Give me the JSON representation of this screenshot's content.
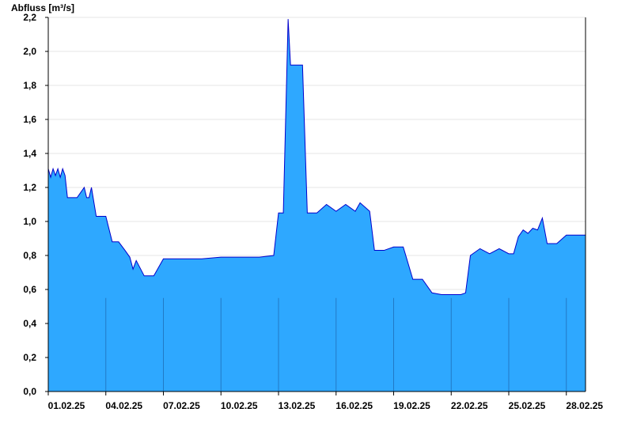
{
  "chart_data": {
    "type": "area",
    "ylabel": "Abfluss [m³/s]",
    "ylim": [
      0,
      2.2
    ],
    "xlim": [
      "2025-02-01",
      "2025-02-28"
    ],
    "y_ticks": [
      "0,0",
      "0,2",
      "0,4",
      "0,6",
      "0,8",
      "1,0",
      "1,2",
      "1,4",
      "1,6",
      "1,8",
      "2,0",
      "2,2"
    ],
    "y_tick_values": [
      0,
      0.2,
      0.4,
      0.6,
      0.8,
      1.0,
      1.2,
      1.4,
      1.6,
      1.8,
      2.0,
      2.2
    ],
    "x_ticks": [
      "01.02.25",
      "04.02.25",
      "07.02.25",
      "10.02.25",
      "13.02.25",
      "16.02.25",
      "19.02.25",
      "22.02.25",
      "25.02.25",
      "28.02.25"
    ],
    "x_tick_dates": [
      "2025-02-01",
      "2025-02-04",
      "2025-02-07",
      "2025-02-10",
      "2025-02-13",
      "2025-02-16",
      "2025-02-19",
      "2025-02-22",
      "2025-02-25",
      "2025-02-28"
    ],
    "grid": true,
    "colors": {
      "fill": "#2ea8ff",
      "line": "#0000cc",
      "grid": "#e6e6e6",
      "divider": "#1a5aa0"
    },
    "series": [
      {
        "x": [
          "2025-02-01 00:00",
          "2025-02-01 03:00",
          "2025-02-01 06:00",
          "2025-02-01 09:00",
          "2025-02-01 12:00",
          "2025-02-01 15:00",
          "2025-02-01 18:00",
          "2025-02-01 21:00",
          "2025-02-02 00:00",
          "2025-02-02 12:00",
          "2025-02-02 21:00",
          "2025-02-03 00:00",
          "2025-02-03 03:00",
          "2025-02-03 06:00",
          "2025-02-03 12:00",
          "2025-02-04 00:00",
          "2025-02-04 08:00",
          "2025-02-04 16:00",
          "2025-02-05 00:00",
          "2025-02-05 06:00",
          "2025-02-05 10:00",
          "2025-02-05 14:00",
          "2025-02-06 00:00",
          "2025-02-06 12:00",
          "2025-02-07 00:00",
          "2025-02-08 00:00",
          "2025-02-09 00:00",
          "2025-02-10 00:00",
          "2025-02-11 00:00",
          "2025-02-12 00:00",
          "2025-02-12 18:00",
          "2025-02-13 00:00",
          "2025-02-13 06:00",
          "2025-02-13 12:00",
          "2025-02-13 15:00",
          "2025-02-13 18:00",
          "2025-02-13 21:00",
          "2025-02-14 06:00",
          "2025-02-14 12:00",
          "2025-02-14 18:00",
          "2025-02-15 00:00",
          "2025-02-15 12:00",
          "2025-02-16 00:00",
          "2025-02-16 12:00",
          "2025-02-17 00:00",
          "2025-02-17 06:00",
          "2025-02-17 18:00",
          "2025-02-18 00:00",
          "2025-02-18 12:00",
          "2025-02-19 00:00",
          "2025-02-19 12:00",
          "2025-02-20 00:00",
          "2025-02-20 12:00",
          "2025-02-21 00:00",
          "2025-02-21 12:00",
          "2025-02-22 00:00",
          "2025-02-22 12:00",
          "2025-02-22 18:00",
          "2025-02-23 00:00",
          "2025-02-23 12:00",
          "2025-02-24 00:00",
          "2025-02-24 12:00",
          "2025-02-25 00:00",
          "2025-02-25 06:00",
          "2025-02-25 12:00",
          "2025-02-25 18:00",
          "2025-02-26 00:00",
          "2025-02-26 06:00",
          "2025-02-26 12:00",
          "2025-02-26 18:00",
          "2025-02-27 00:00",
          "2025-02-27 12:00",
          "2025-02-28 00:00",
          "2025-02-28 12:00",
          "2025-03-01 00:00"
        ],
        "values": [
          1.31,
          1.26,
          1.31,
          1.27,
          1.31,
          1.26,
          1.31,
          1.27,
          1.14,
          1.14,
          1.2,
          1.14,
          1.14,
          1.2,
          1.03,
          1.03,
          0.88,
          0.88,
          0.83,
          0.79,
          0.72,
          0.77,
          0.68,
          0.68,
          0.78,
          0.78,
          0.78,
          0.79,
          0.79,
          0.79,
          0.8,
          1.05,
          1.05,
          2.19,
          1.92,
          1.92,
          1.92,
          1.92,
          1.05,
          1.05,
          1.05,
          1.1,
          1.06,
          1.1,
          1.06,
          1.11,
          1.06,
          0.83,
          0.83,
          0.85,
          0.85,
          0.66,
          0.66,
          0.58,
          0.57,
          0.57,
          0.57,
          0.58,
          0.8,
          0.84,
          0.81,
          0.84,
          0.81,
          0.81,
          0.91,
          0.95,
          0.93,
          0.96,
          0.95,
          1.02,
          0.87,
          0.87,
          0.92,
          0.92,
          0.92
        ]
      }
    ]
  }
}
